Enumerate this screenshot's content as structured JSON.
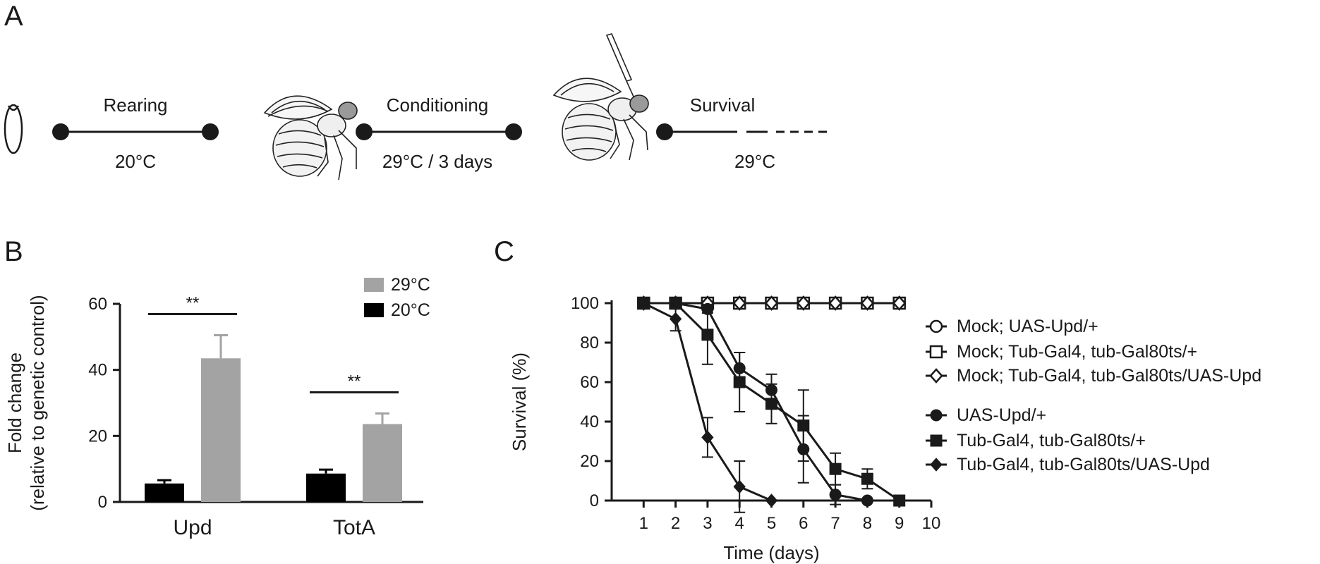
{
  "panel_a": {
    "letter": "A",
    "steps": [
      {
        "name": "Rearing",
        "condition": "20°C"
      },
      {
        "name": "Conditioning",
        "condition": "29°C / 3 days"
      },
      {
        "name": "Survival",
        "condition": "29°C"
      }
    ]
  },
  "chart_data": [
    {
      "panel": "B",
      "type": "bar",
      "xlabel": "",
      "ylabel": [
        "Fold change",
        "(relative to genetic control)"
      ],
      "ylim": [
        0,
        60
      ],
      "yticks": [
        0,
        20,
        40,
        60
      ],
      "categories": [
        "Upd",
        "TotA"
      ],
      "series": [
        {
          "name": "20°C",
          "color": "#000000",
          "values": [
            5.6,
            8.6
          ],
          "errors": [
            1.0,
            1.2
          ]
        },
        {
          "name": "29°C",
          "color": "#a3a3a3",
          "values": [
            43.5,
            23.6
          ],
          "errors": [
            7.0,
            3.2
          ]
        }
      ],
      "significance": [
        "**",
        "**"
      ],
      "legend": {
        "placement": "top-right",
        "order": [
          "29°C",
          "20°C"
        ]
      }
    },
    {
      "panel": "C",
      "type": "line",
      "xlabel": "Time (days)",
      "ylabel": "Survival (%)",
      "xlim": [
        0,
        10
      ],
      "ylim": [
        0,
        100
      ],
      "xticks": [
        1,
        2,
        3,
        4,
        5,
        6,
        7,
        8,
        9,
        10
      ],
      "yticks": [
        0,
        20,
        40,
        60,
        80,
        100
      ],
      "legend": {
        "placement": "right"
      },
      "series": [
        {
          "name": "Mock; UAS-Upd/+",
          "marker": "circle-open",
          "x": [
            1,
            2,
            3,
            4,
            5,
            6,
            7,
            8,
            9
          ],
          "y": [
            100,
            100,
            100,
            100,
            100,
            100,
            100,
            100,
            100
          ],
          "err": [
            0,
            0,
            0,
            0,
            0,
            0,
            0,
            0,
            0
          ]
        },
        {
          "name": "Mock; Tub-Gal4, tub-Gal80ts/+",
          "marker": "square-open",
          "x": [
            1,
            2,
            3,
            4,
            5,
            6,
            7,
            8,
            9
          ],
          "y": [
            100,
            100,
            100,
            100,
            100,
            100,
            100,
            100,
            100
          ],
          "err": [
            0,
            0,
            0,
            0,
            0,
            0,
            0,
            0,
            0
          ]
        },
        {
          "name": "Mock; Tub-Gal4, tub-Gal80ts/UAS-Upd",
          "marker": "diamond-open",
          "x": [
            1,
            2,
            3,
            4,
            5,
            6,
            7,
            8,
            9
          ],
          "y": [
            100,
            100,
            100,
            100,
            100,
            100,
            100,
            100,
            100
          ],
          "err": [
            0,
            0,
            0,
            0,
            0,
            0,
            0,
            0,
            0
          ]
        },
        {
          "name": "UAS-Upd/+",
          "marker": "circle",
          "x": [
            1,
            2,
            3,
            4,
            5,
            6,
            7,
            8
          ],
          "y": [
            100,
            100,
            97,
            67,
            56,
            26,
            3,
            0
          ],
          "err": [
            0,
            0,
            2,
            8,
            8,
            17,
            5,
            0
          ]
        },
        {
          "name": "Tub-Gal4, tub-Gal80ts/+",
          "marker": "square",
          "x": [
            1,
            2,
            3,
            4,
            5,
            6,
            7,
            8,
            9
          ],
          "y": [
            100,
            100,
            84,
            60,
            49,
            38,
            16,
            11,
            0
          ],
          "err": [
            0,
            0,
            15,
            15,
            10,
            18,
            8,
            5,
            0
          ]
        },
        {
          "name": "Tub-Gal4, tub-Gal80ts/UAS-Upd",
          "marker": "diamond",
          "x": [
            1,
            2,
            3,
            4,
            5
          ],
          "y": [
            100,
            92,
            32,
            7,
            0
          ],
          "err": [
            0,
            6,
            10,
            13,
            0
          ]
        }
      ]
    }
  ]
}
